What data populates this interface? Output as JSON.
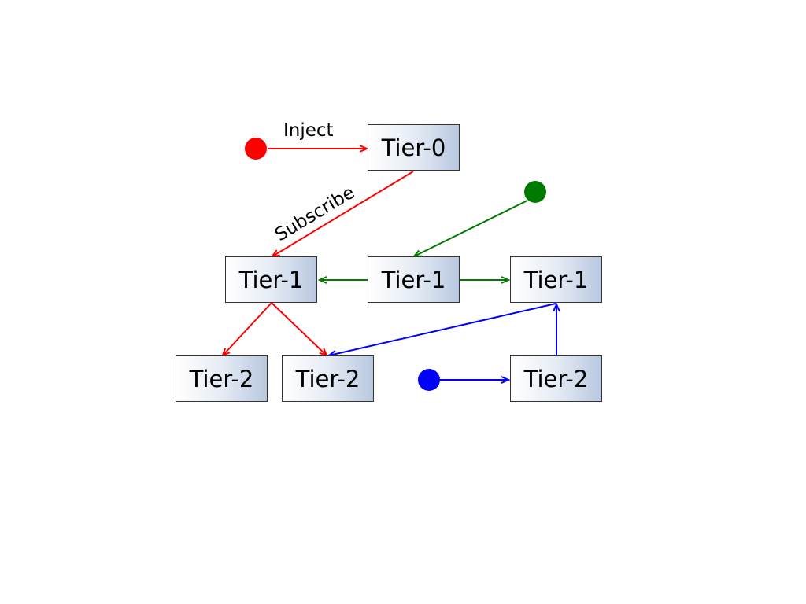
{
  "diagram": {
    "nodes": [
      {
        "id": "tier0",
        "label": "Tier-0"
      },
      {
        "id": "tier1-left",
        "label": "Tier-1"
      },
      {
        "id": "tier1-center",
        "label": "Tier-1"
      },
      {
        "id": "tier1-right",
        "label": "Tier-1"
      },
      {
        "id": "tier2-left",
        "label": "Tier-2"
      },
      {
        "id": "tier2-center",
        "label": "Tier-2"
      },
      {
        "id": "tier2-right",
        "label": "Tier-2"
      }
    ],
    "edge_labels": {
      "inject": "Inject",
      "subscribe": "Subscribe"
    },
    "sources": [
      {
        "id": "red-source",
        "color": "#ff0000"
      },
      {
        "id": "green-source",
        "color": "#007a00"
      },
      {
        "id": "blue-source",
        "color": "#0000ff"
      }
    ],
    "colors": {
      "red": "#ff0000",
      "green": "#007a00",
      "blue": "#0000ff"
    }
  }
}
